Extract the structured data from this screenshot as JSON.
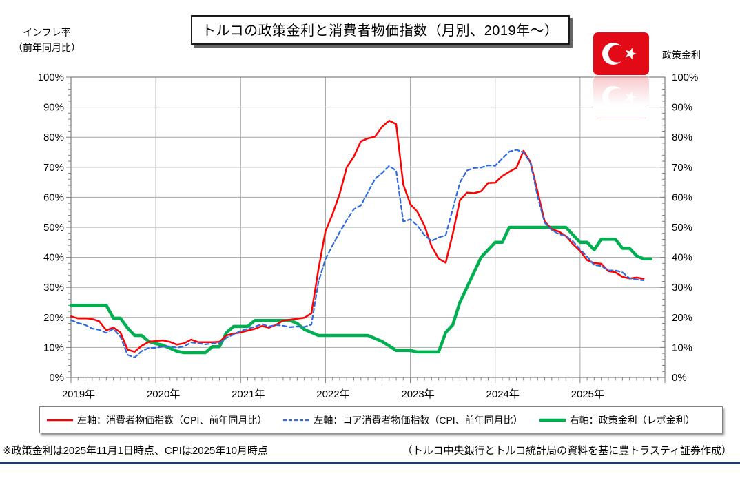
{
  "header": {
    "title": "トルコの政策金利と消費者物価指数（月別、2019年～）",
    "left_axis_caption_line1": "インフレ率",
    "left_axis_caption_line2": "（前年同月比）",
    "right_axis_caption": "政策金利",
    "flag": {
      "red": "#E30A17",
      "white": "#FFFFFF"
    }
  },
  "chart_data": {
    "type": "line",
    "title": "トルコの政策金利と消費者物価指数（月別、2019年～）",
    "x_start": "2019-01",
    "x_axis_end": "2026-01",
    "x_months_span": 84,
    "x_tick_years": [
      "2019年",
      "2020年",
      "2021年",
      "2022年",
      "2023年",
      "2024年",
      "2025年"
    ],
    "y_min": 0,
    "y_max": 100,
    "y_step": 10,
    "y_minor_step": 2,
    "y_tick_suffix": "%",
    "y_left_label": "インフレ率（前年同月比）",
    "y_right_label": "政策金利",
    "grid": true,
    "grid_color": "#A6A6A6",
    "axis_color": "#7F7F7F",
    "legend_position": "bottom",
    "series": [
      {
        "name": "左軸：消費者物価指数（CPI、前年同月比）",
        "color": "#FF0000",
        "style": "solid",
        "width": 2.5,
        "axis": "left",
        "start": "2019-01",
        "values": [
          20.35,
          19.67,
          19.71,
          19.5,
          18.71,
          15.72,
          16.65,
          15.01,
          9.26,
          8.55,
          10.56,
          11.84,
          12.15,
          12.37,
          11.86,
          10.94,
          11.39,
          12.62,
          11.76,
          11.77,
          11.75,
          11.89,
          14.03,
          14.6,
          14.97,
          15.61,
          16.19,
          17.14,
          16.59,
          17.53,
          18.95,
          19.25,
          19.58,
          19.89,
          21.31,
          36.08,
          48.69,
          54.44,
          61.14,
          69.97,
          73.5,
          78.62,
          79.6,
          80.21,
          83.45,
          85.51,
          84.39,
          64.27,
          57.68,
          55.18,
          50.51,
          43.68,
          39.59,
          38.21,
          47.83,
          58.94,
          61.53,
          61.36,
          61.98,
          64.77,
          64.86,
          67.07,
          68.5,
          69.8,
          75.45,
          71.6,
          61.78,
          51.97,
          49.38,
          48.58,
          47.09,
          44.38,
          42.12,
          39.05,
          38.1,
          37.86,
          35.41,
          35.05,
          33.52,
          32.95,
          33.29,
          32.87
        ]
      },
      {
        "name": "左軸：コア消費者物価指数（CPI、前年同月比）",
        "color": "#2E6BE0",
        "style": "dashed",
        "width": 2.2,
        "axis": "left",
        "start": "2019-01",
        "values": [
          19.1,
          18.12,
          17.53,
          16.3,
          15.87,
          14.86,
          16.2,
          13.6,
          7.54,
          6.67,
          8.78,
          9.81,
          9.88,
          10.27,
          10.39,
          9.93,
          10.32,
          11.64,
          11.42,
          11.03,
          11.32,
          11.48,
          13.26,
          14.31,
          15.53,
          16.21,
          16.88,
          17.77,
          16.99,
          17.47,
          17.22,
          16.76,
          16.98,
          16.82,
          17.62,
          31.88,
          39.45,
          44.05,
          48.39,
          52.37,
          56.04,
          57.26,
          61.69,
          66.09,
          68.09,
          70.45,
          68.86,
          51.93,
          52.66,
          50.58,
          47.36,
          45.48,
          46.62,
          47.33,
          56.09,
          64.86,
          68.93,
          69.76,
          69.89,
          70.64,
          70.48,
          72.89,
          75.21,
          75.81,
          74.98,
          71.41,
          60.23,
          51.56,
          49.1,
          47.75,
          47.13,
          45.34,
          42.65,
          40.21,
          37.42,
          37.12,
          35.64,
          35.64,
          34.99,
          33.02,
          32.63,
          32.34
        ]
      },
      {
        "name": "右軸：政策金利（レポ金利）",
        "color": "#00B050",
        "style": "solid",
        "width": 4.5,
        "axis": "right",
        "start": "2019-01",
        "values": [
          24,
          24,
          24,
          24,
          24,
          24,
          19.75,
          19.75,
          16.5,
          14,
          14,
          12,
          11.25,
          10.75,
          9.75,
          8.75,
          8.25,
          8.25,
          8.25,
          8.25,
          10.25,
          10.25,
          15,
          17,
          17,
          17,
          19,
          19,
          19,
          19,
          19,
          19,
          18,
          16,
          15,
          14,
          14,
          14,
          14,
          14,
          14,
          14,
          14,
          13,
          12,
          10.5,
          9,
          9,
          9,
          8.5,
          8.5,
          8.5,
          8.5,
          15,
          17.5,
          25,
          30,
          35,
          40,
          42.5,
          45,
          45,
          50,
          50,
          50,
          50,
          50,
          50,
          50,
          50,
          50,
          47.5,
          45,
          45,
          42.5,
          46,
          46,
          46,
          43,
          43,
          40.5,
          39.5,
          39.5
        ]
      }
    ]
  },
  "footer": {
    "note": "※政策金利は2025年11月1日時点、CPIは2025年10月時点",
    "source": "（トルコ中央銀行とトルコ統計局の資料を基に豊トラスティ証券作成）",
    "rule_color": "#1F3864"
  }
}
